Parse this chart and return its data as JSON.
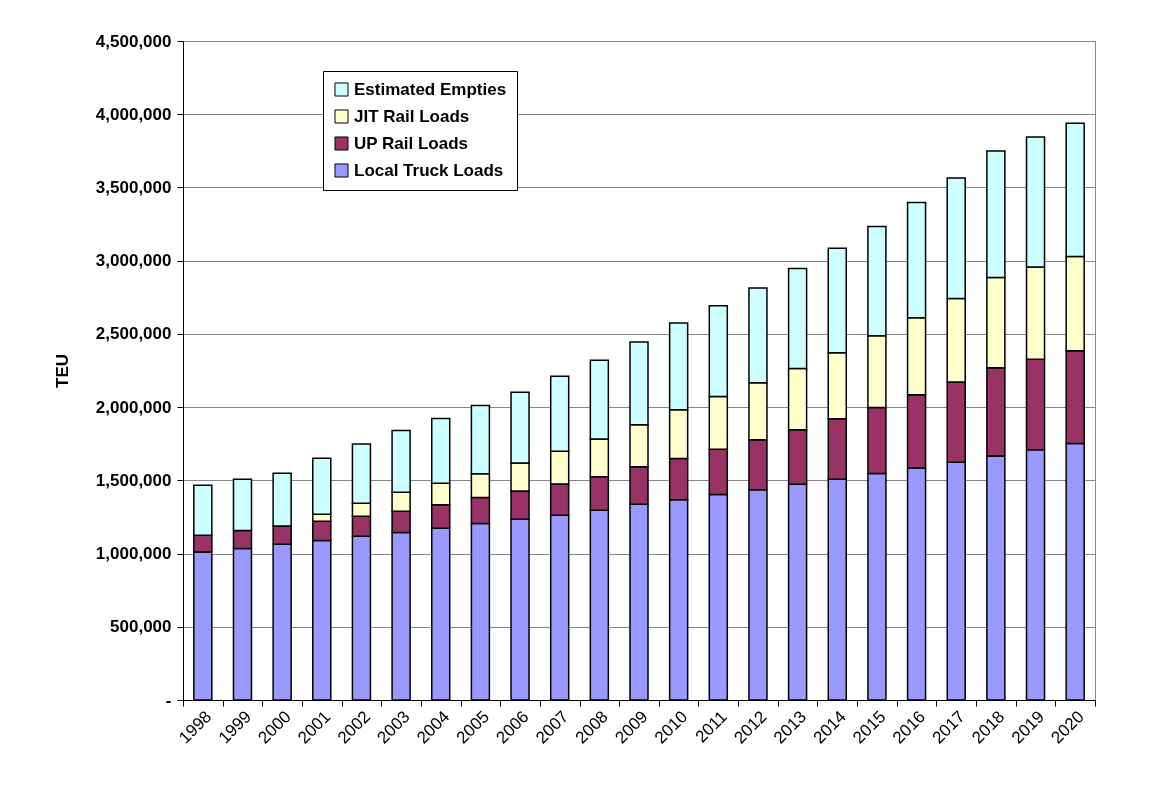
{
  "chart_data": {
    "type": "bar",
    "stacked": true,
    "ylabel": "TEU",
    "legend": "top left",
    "grid": "y",
    "categories": [
      "1998",
      "1999",
      "2000",
      "2001",
      "2002",
      "2003",
      "2004",
      "2005",
      "2006",
      "2007",
      "2008",
      "2009",
      "2010",
      "2011",
      "2012",
      "2013",
      "2014",
      "2015",
      "2016",
      "2017",
      "2018",
      "2019",
      "2020"
    ],
    "ylim": [
      0,
      4500000
    ],
    "yticks": [
      {
        "value": 0,
        "label": "-"
      },
      {
        "value": 500000,
        "label": "500,000"
      },
      {
        "value": 1000000,
        "label": "1,000,000"
      },
      {
        "value": 1500000,
        "label": "1,500,000"
      },
      {
        "value": 2000000,
        "label": "2,000,000"
      },
      {
        "value": 2500000,
        "label": "2,500,000"
      },
      {
        "value": 3000000,
        "label": "3,000,000"
      },
      {
        "value": 3500000,
        "label": "3,500,000"
      },
      {
        "value": 4000000,
        "label": "4,000,000"
      },
      {
        "value": 4500000,
        "label": "4,500,000"
      }
    ],
    "series": [
      {
        "name": "Local Truck Loads",
        "color": "#9999ff",
        "values": [
          1011000,
          1034000,
          1064000,
          1089000,
          1118000,
          1143000,
          1173000,
          1205000,
          1234000,
          1261000,
          1295000,
          1336000,
          1367000,
          1403000,
          1436000,
          1474000,
          1508000,
          1546000,
          1585000,
          1623000,
          1667000,
          1708000,
          1751000
        ]
      },
      {
        "name": "UP Rail Loads",
        "color": "#993366",
        "values": [
          114000,
          123000,
          125000,
          131000,
          137000,
          146000,
          161000,
          177000,
          193000,
          214000,
          230000,
          256000,
          282000,
          310000,
          341000,
          372000,
          413000,
          451000,
          500000,
          549000,
          602000,
          618000,
          634000
        ]
      },
      {
        "name": "JIT Rail Loads",
        "color": "#ffffcc",
        "values": [
          null,
          null,
          null,
          48000,
          88000,
          129000,
          146000,
          163000,
          191000,
          223000,
          257000,
          287000,
          333000,
          359000,
          390000,
          418000,
          451000,
          490000,
          525000,
          569000,
          616000,
          630000,
          643000
        ]
      },
      {
        "name": "Estimated Empties",
        "color": "#ccffff",
        "values": [
          341000,
          350000,
          359000,
          382000,
          405000,
          423000,
          443000,
          466000,
          484000,
          512000,
          538000,
          565000,
          592000,
          620000,
          646000,
          682000,
          713000,
          746000,
          787000,
          823000,
          864000,
          888000,
          910000
        ]
      }
    ]
  }
}
